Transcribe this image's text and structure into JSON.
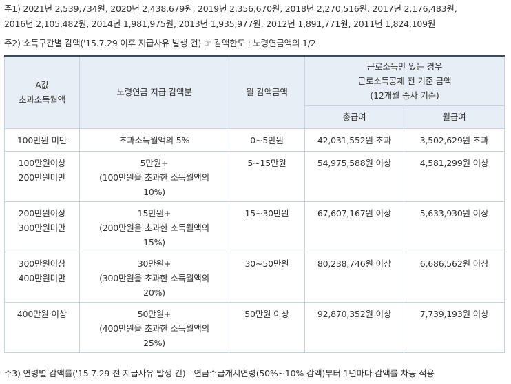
{
  "notes": {
    "note1": "주1) 2021년 2,539,734원, 2020년 2,438,679원, 2019년 2,356,670원, 2018년 2,270,516원, 2017년 2,176,483원,\n2016년 2,105,482원, 2014년 1,981,975원, 2013년 1,935,977원, 2012년 1,891,771원, 2011년 1,824,109원",
    "note2": "주2) 소득구간별 감액('15.7.29 이후 지급사유 발생 건) ☞ 감액한도 : 노령연금액의 1/2",
    "note3": "주3) 연령별 감액률('15.7.29 전 지급사유 발생 건) - 연금수급개시연령(50%~10% 감액)부터 1년마다 감액률 차등 적용"
  },
  "table": {
    "headers": {
      "col1": "A값\n초과소득월액",
      "col2": "노령연금 지급 감액분",
      "col3": "월 감액금액",
      "group": "근로소득만 있는 경우\n근로소득공제 전 기준 금액\n(12개월 중사 기준)",
      "sub1": "총급여",
      "sub2": "월급여"
    },
    "rows": [
      {
        "range": "100만원 미만",
        "reduction": "초과소득월액의 5%",
        "monthly": "0~5만원",
        "total_pay": "42,031,552원 초과",
        "monthly_pay": "3,502,629원 초과"
      },
      {
        "range": "100만원이상\n200만원미만",
        "reduction": "5만원+\n(100만원을 초과한 소득월액의\n10%)",
        "monthly": "5~15만원",
        "total_pay": "54,975,588원 이상",
        "monthly_pay": "4,581,299원 이상"
      },
      {
        "range": "200만원이상\n300만원미만",
        "reduction": "15만원+\n(200만원을 초과한 소득월액의\n15%)",
        "monthly": "15~30만원",
        "total_pay": "67,607,167원 이상",
        "monthly_pay": "5,633,930원 이상"
      },
      {
        "range": "300만원이상\n400만원미만",
        "reduction": "30만원+\n(300만원을 초과한 소득월액의\n20%)",
        "monthly": "30~50만원",
        "total_pay": "80,238,746원 이상",
        "monthly_pay": "6,686,562원 이상"
      },
      {
        "range": "400만원 이상",
        "reduction": "50만원+\n(400만원을 초과한 소득월액의\n25%)",
        "monthly": "50만원 이상",
        "total_pay": "92,870,352원 이상",
        "monthly_pay": "7,739,193원 이상"
      }
    ]
  }
}
